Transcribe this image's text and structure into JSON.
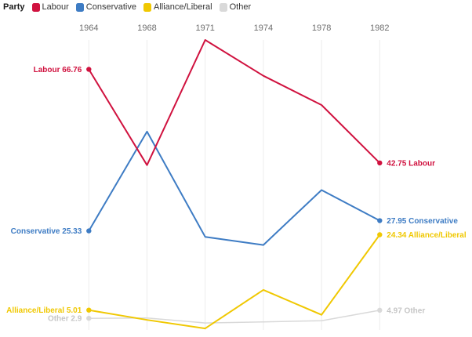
{
  "legend": {
    "title": "Party",
    "position": "top-left"
  },
  "axis": {
    "tick_color": "#6e6e6e",
    "grid_color": "#ececec"
  },
  "chart_data": {
    "type": "line",
    "title": "",
    "xlabel": "",
    "ylabel": "",
    "x": [
      "1964",
      "1968",
      "1971",
      "1974",
      "1978",
      "1982"
    ],
    "x_axis_position": "top",
    "grid": "vertical-only",
    "legend_position": "top-left",
    "ylim": [
      0,
      76
    ],
    "series": [
      {
        "name": "Labour",
        "color": "#d0123f",
        "values": [
          66.76,
          42.2,
          74.3,
          65.1,
          57.6,
          42.75
        ],
        "start_label": "Labour 66.76",
        "end_label": "42.75 Labour"
      },
      {
        "name": "Conservative",
        "color": "#3e7cc4",
        "values": [
          25.33,
          50.8,
          23.8,
          21.7,
          35.8,
          27.95
        ],
        "start_label": "Conservative 25.33",
        "end_label": "27.95 Conservative"
      },
      {
        "name": "Alliance/Liberal",
        "color": "#f0c802",
        "values": [
          5.01,
          2.5,
          0.3,
          10.2,
          3.8,
          24.34
        ],
        "start_label": "Alliance/Liberal 5.01",
        "end_label": "24.34 Alliance/Liberal"
      },
      {
        "name": "Other",
        "color": "#d9d9d9",
        "label_color": "#c6c6c6",
        "values": [
          2.9,
          3.0,
          1.7,
          2.0,
          2.3,
          4.97
        ],
        "start_label": "Other 2.9",
        "end_label": "4.97 Other"
      }
    ]
  }
}
